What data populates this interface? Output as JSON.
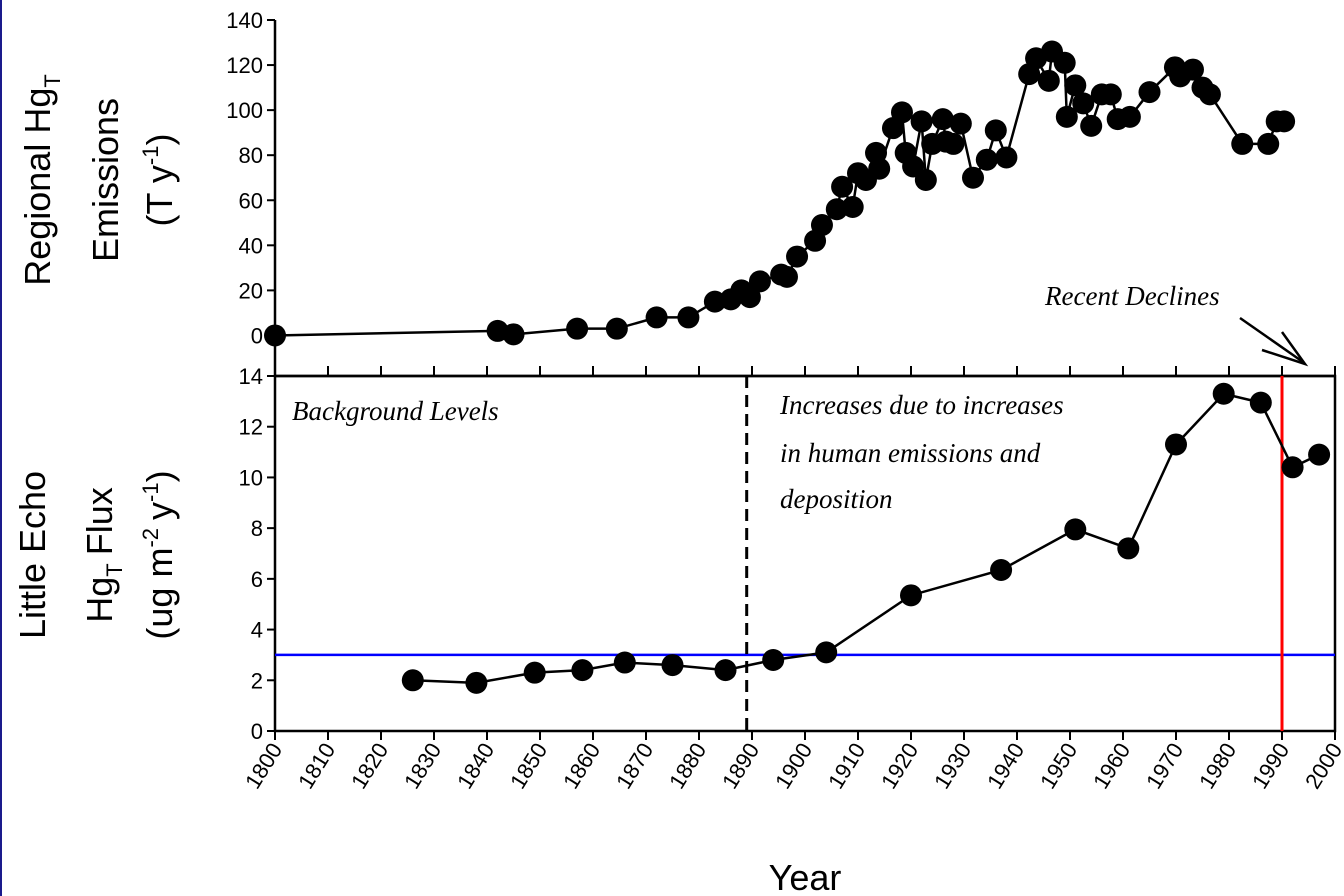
{
  "chart_data": [
    {
      "type": "line",
      "color": "#000000",
      "ylabel": [
        "Regional Hg",
        "T",
        "Emissions",
        "(T y",
        "-1",
        ")"
      ],
      "xlim": [
        1800,
        2000
      ],
      "xticks": [
        1800,
        1810,
        1820,
        1830,
        1840,
        1850,
        1860,
        1870,
        1880,
        1890,
        1900,
        1910,
        1920,
        1930,
        1940,
        1950,
        1960,
        1970,
        1980,
        1990,
        2000
      ],
      "ylim": [
        -18,
        140
      ],
      "yticks": [
        0,
        20,
        40,
        60,
        80,
        100,
        120,
        140
      ],
      "x": [
        1800,
        1842,
        1845,
        1857,
        1864.5,
        1872,
        1878,
        1883,
        1886,
        1888,
        1889.6,
        1891.5,
        1895.5,
        1896.6,
        1898.5,
        1901.9,
        1903.2,
        1906,
        1907,
        1909,
        1910,
        1911.5,
        1913.4,
        1914,
        1916.6,
        1918.3,
        1919,
        1920.4,
        1922,
        1922.8,
        1924,
        1926,
        1926.6,
        1928,
        1929.4,
        1931.7,
        1934.3,
        1936,
        1938,
        1942.3,
        1943.6,
        1946,
        1946.6,
        1949,
        1949.4,
        1951,
        1952.5,
        1954,
        1956,
        1957.7,
        1959,
        1961.3,
        1965,
        1969.8,
        1970.8,
        1973.2,
        1975,
        1976.4,
        1982.5,
        1987.4,
        1989,
        1990.4
      ],
      "values": [
        0,
        2,
        0.5,
        3,
        3,
        8,
        8,
        15,
        16,
        20,
        17,
        24,
        27,
        26,
        35,
        42,
        49,
        56,
        66,
        57,
        72,
        69,
        81,
        74,
        92,
        99,
        81,
        75,
        95,
        69,
        85,
        96,
        86,
        85,
        94,
        70,
        78,
        91,
        79,
        116,
        123,
        113,
        126,
        121,
        97,
        111,
        103,
        93,
        107,
        107,
        96,
        97,
        108,
        119,
        115,
        118,
        110,
        107,
        85,
        85,
        95,
        95
      ],
      "annotations": [
        "Recent Declines"
      ]
    },
    {
      "type": "line",
      "color": "#000000",
      "ylabel": [
        "Little Echo",
        "Hg",
        "T",
        "Flux",
        "(ug m",
        "-2",
        "y",
        "-1",
        ")"
      ],
      "xlabel": "Year",
      "xlim": [
        1800,
        2000
      ],
      "xticks": [
        1800,
        1810,
        1820,
        1830,
        1840,
        1850,
        1860,
        1870,
        1880,
        1890,
        1900,
        1910,
        1920,
        1930,
        1940,
        1950,
        1960,
        1970,
        1980,
        1990,
        2000
      ],
      "ylim": [
        0,
        14
      ],
      "yticks": [
        0,
        2,
        4,
        6,
        8,
        10,
        12,
        14
      ],
      "x": [
        1826,
        1838,
        1849,
        1858,
        1866,
        1875,
        1885,
        1894,
        1904,
        1920,
        1937,
        1951,
        1961,
        1970,
        1979,
        1986,
        1992,
        1997
      ],
      "values": [
        2.0,
        1.9,
        2.3,
        2.4,
        2.7,
        2.6,
        2.4,
        2.8,
        3.1,
        5.35,
        6.35,
        7.95,
        7.2,
        11.3,
        13.3,
        12.95,
        10.4,
        10.9
      ],
      "hlines": [
        {
          "value": 3,
          "color": "#0000ff"
        }
      ],
      "vlines": [
        {
          "value": 1990,
          "color": "#ff0000",
          "style": "solid"
        },
        {
          "value": 1889,
          "color": "#000000",
          "style": "dashed"
        }
      ],
      "annotations": [
        "Background Levels",
        "Increases due to increases",
        "in human emissions and",
        "deposition"
      ]
    }
  ]
}
